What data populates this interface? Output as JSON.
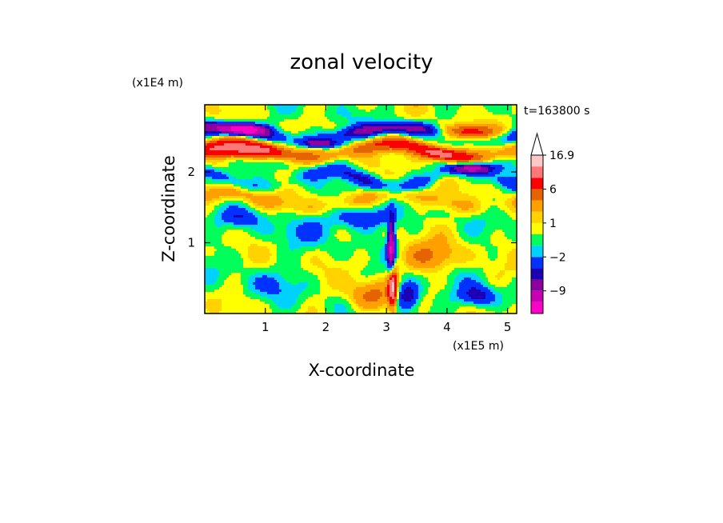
{
  "chart_data": {
    "type": "heatmap",
    "title": "zonal velocity",
    "xlabel": "X-coordinate",
    "ylabel": "Z-coordinate",
    "x_scale_label": "(x1E5 m)",
    "y_scale_label": "(x1E4 m)",
    "time_label": "t=163800 s",
    "xlim": [
      0,
      5.15
    ],
    "ylim": [
      0,
      2.95
    ],
    "x_ticks": [
      1,
      2,
      3,
      4,
      5
    ],
    "y_ticks": [
      1,
      2
    ],
    "colorbar": {
      "levels": [
        -16.9,
        -12.5,
        -9,
        -6,
        -4,
        -2,
        -1,
        0,
        1,
        2,
        4,
        6,
        9,
        12.5,
        16.9
      ],
      "colors": [
        "#ff00c8",
        "#c800b4",
        "#8c00a0",
        "#1e00b4",
        "#0032ff",
        "#00d2ff",
        "#00ff5a",
        "#ffff00",
        "#ffd200",
        "#ffa000",
        "#e66400",
        "#ff0000",
        "#ff7878",
        "#ffc8c8"
      ],
      "labels": [
        {
          "value": 16.9,
          "text": "16.9"
        },
        {
          "value": 6,
          "text": "6"
        },
        {
          "value": 1,
          "text": "1"
        },
        {
          "value": -2,
          "text": "−2"
        },
        {
          "value": -9,
          "text": "−9"
        }
      ],
      "extend": "max"
    },
    "field_features": [
      {
        "type": "band",
        "z": 2.3,
        "amp": 0.1,
        "wavelength": 2.6,
        "phase": 0.4,
        "width": 0.1,
        "strength": 8,
        "x_range": [
          0,
          5.15
        ]
      },
      {
        "type": "band",
        "z": 2.55,
        "amp": 0.08,
        "wavelength": 3.0,
        "phase": 1.2,
        "width": 0.09,
        "strength": -7,
        "x_range": [
          0,
          5.15
        ]
      },
      {
        "type": "band",
        "z": 1.9,
        "amp": 0.12,
        "wavelength": 2.2,
        "phase": 2.0,
        "width": 0.1,
        "strength": -4,
        "x_range": [
          0,
          5.15
        ]
      },
      {
        "type": "band",
        "z": 1.6,
        "amp": 0.1,
        "wavelength": 2.8,
        "phase": 0.8,
        "width": 0.12,
        "strength": 3,
        "x_range": [
          0,
          5.15
        ]
      },
      {
        "type": "blob",
        "x": 0.65,
        "z": 2.6,
        "sx": 0.35,
        "sz": 0.07,
        "strength": -12
      },
      {
        "type": "blob",
        "x": 0.6,
        "z": 2.28,
        "sx": 0.5,
        "sz": 0.09,
        "strength": 8
      },
      {
        "type": "blob",
        "x": 1.9,
        "z": 2.4,
        "sx": 0.3,
        "sz": 0.06,
        "strength": -8
      },
      {
        "type": "blob",
        "x": 4.3,
        "z": 2.55,
        "sx": 0.45,
        "sz": 0.1,
        "strength": 9
      },
      {
        "type": "blob",
        "x": 4.4,
        "z": 2.05,
        "sx": 0.35,
        "sz": 0.07,
        "strength": -10
      },
      {
        "type": "blob",
        "x": 3.9,
        "z": 2.25,
        "sx": 0.35,
        "sz": 0.08,
        "strength": 5
      },
      {
        "type": "blob",
        "x": 2.6,
        "z": 1.35,
        "sx": 0.45,
        "sz": 0.15,
        "strength": -5
      },
      {
        "type": "blob",
        "x": 3.08,
        "z": 0.9,
        "sx": 0.06,
        "sz": 0.4,
        "strength": -13
      },
      {
        "type": "blob",
        "x": 3.1,
        "z": 0.4,
        "sx": 0.07,
        "sz": 0.3,
        "strength": 14
      },
      {
        "type": "blob",
        "x": 3.35,
        "z": 0.25,
        "sx": 0.2,
        "sz": 0.2,
        "strength": -7
      },
      {
        "type": "blob",
        "x": 2.75,
        "z": 0.25,
        "sx": 0.35,
        "sz": 0.2,
        "strength": 5
      },
      {
        "type": "blob",
        "x": 3.7,
        "z": 0.8,
        "sx": 0.5,
        "sz": 0.2,
        "strength": 4
      },
      {
        "type": "blob",
        "x": 4.5,
        "z": 0.25,
        "sx": 0.3,
        "sz": 0.15,
        "strength": -5
      },
      {
        "type": "blob",
        "x": 1.5,
        "z": 1.15,
        "sx": 0.6,
        "sz": 0.2,
        "strength": -1.5
      },
      {
        "type": "blob",
        "x": 0.6,
        "z": 1.35,
        "sx": 0.35,
        "sz": 0.12,
        "strength": -3
      },
      {
        "type": "blob",
        "x": 1.05,
        "z": 0.4,
        "sx": 0.5,
        "sz": 0.2,
        "strength": -1.5
      }
    ]
  }
}
